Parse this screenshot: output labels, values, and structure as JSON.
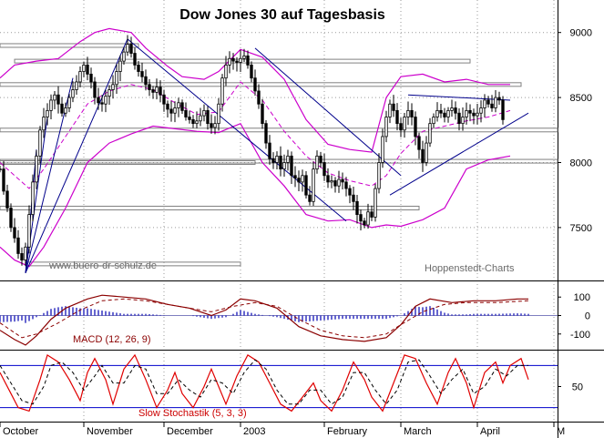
{
  "chart_data": {
    "type": "candlestick",
    "title": "Dow Jones 30 auf Tagesbasis",
    "watermark_left": "www.buero-dr-schulz.de",
    "watermark_right": "Hoppenstedt-Charts",
    "x_labels": [
      "October",
      "November",
      "December",
      "2003",
      "February",
      "March",
      "April",
      "M"
    ],
    "x_label_day": [
      0,
      23,
      45,
      66,
      89,
      110,
      131,
      152
    ],
    "x_range": [
      0,
      153
    ],
    "colors": {
      "up": "#ffffff",
      "down": "#000000",
      "bands": "#cc00cc",
      "trend": "#00008b",
      "macd_line": "#8b0000",
      "stoch_line": "#e00000",
      "stoch_ref": "#0000cc"
    },
    "price": {
      "ylim": [
        7100,
        9250
      ],
      "y_ticks": [
        7500,
        8000,
        8500,
        9000
      ],
      "closes": [
        7950,
        7780,
        7650,
        7500,
        7420,
        7300,
        7250,
        7350,
        7600,
        7850,
        8050,
        8250,
        8350,
        8400,
        8480,
        8520,
        8450,
        8380,
        8420,
        8500,
        8560,
        8620,
        8700,
        8750,
        8680,
        8620,
        8500,
        8460,
        8450,
        8510,
        8560,
        8600,
        8700,
        8780,
        8850,
        8910,
        8840,
        8750,
        8700,
        8660,
        8600,
        8560,
        8540,
        8580,
        8520,
        8450,
        8410,
        8380,
        8420,
        8460,
        8400,
        8350,
        8330,
        8300,
        8320,
        8360,
        8400,
        8300,
        8270,
        8300,
        8450,
        8650,
        8750,
        8800,
        8780,
        8770,
        8800,
        8820,
        8750,
        8650,
        8550,
        8450,
        8300,
        8150,
        8030,
        8000,
        8050,
        7950,
        8000,
        8050,
        7900,
        7880,
        7850,
        7900,
        7750,
        7700,
        7950,
        8050,
        8000,
        7900,
        7850,
        7860,
        7820,
        7870,
        7850,
        7800,
        7750,
        7700,
        7600,
        7550,
        7520,
        7620,
        7580,
        7800,
        8000,
        8200,
        8350,
        8450,
        8400,
        8300,
        8250,
        8350,
        8400,
        8350,
        8200,
        8100,
        8000,
        8150,
        8300,
        8350,
        8400,
        8380,
        8350,
        8400,
        8420,
        8380,
        8300,
        8350,
        8400,
        8380,
        8360,
        8380,
        8420,
        8480,
        8450,
        8420,
        8500,
        8480,
        8330
      ],
      "first_close_day": 0,
      "candle_half_width_days": 0.32,
      "bollinger_upper": [
        [
          0,
          8650
        ],
        [
          4,
          8750
        ],
        [
          10,
          8780
        ],
        [
          16,
          8800
        ],
        [
          22,
          8930
        ],
        [
          26,
          9000
        ],
        [
          30,
          9030
        ],
        [
          36,
          9000
        ],
        [
          40,
          8880
        ],
        [
          46,
          8740
        ],
        [
          50,
          8660
        ],
        [
          56,
          8640
        ],
        [
          60,
          8700
        ],
        [
          66,
          8870
        ],
        [
          72,
          8810
        ],
        [
          78,
          8640
        ],
        [
          84,
          8330
        ],
        [
          90,
          8140
        ],
        [
          96,
          8100
        ],
        [
          102,
          8080
        ],
        [
          106,
          8500
        ],
        [
          110,
          8660
        ],
        [
          116,
          8680
        ],
        [
          122,
          8620
        ],
        [
          128,
          8640
        ],
        [
          134,
          8600
        ],
        [
          140,
          8600
        ]
      ],
      "bollinger_mid": [
        [
          0,
          8000
        ],
        [
          4,
          7900
        ],
        [
          8,
          7800
        ],
        [
          12,
          7950
        ],
        [
          18,
          8200
        ],
        [
          24,
          8450
        ],
        [
          30,
          8550
        ],
        [
          36,
          8600
        ],
        [
          42,
          8560
        ],
        [
          48,
          8460
        ],
        [
          54,
          8370
        ],
        [
          60,
          8390
        ],
        [
          66,
          8620
        ],
        [
          72,
          8480
        ],
        [
          78,
          8240
        ],
        [
          84,
          8050
        ],
        [
          90,
          7920
        ],
        [
          96,
          7860
        ],
        [
          102,
          7820
        ],
        [
          106,
          7900
        ],
        [
          110,
          8070
        ],
        [
          116,
          8240
        ],
        [
          122,
          8280
        ],
        [
          128,
          8320
        ],
        [
          134,
          8350
        ],
        [
          140,
          8400
        ]
      ],
      "bollinger_lower": [
        [
          0,
          7350
        ],
        [
          4,
          7250
        ],
        [
          8,
          7200
        ],
        [
          12,
          7350
        ],
        [
          18,
          7650
        ],
        [
          24,
          8000
        ],
        [
          30,
          8150
        ],
        [
          36,
          8220
        ],
        [
          42,
          8280
        ],
        [
          48,
          8260
        ],
        [
          54,
          8240
        ],
        [
          60,
          8230
        ],
        [
          66,
          8300
        ],
        [
          72,
          8000
        ],
        [
          78,
          7820
        ],
        [
          84,
          7600
        ],
        [
          90,
          7550
        ],
        [
          96,
          7560
        ],
        [
          102,
          7500
        ],
        [
          106,
          7520
        ],
        [
          110,
          7510
        ],
        [
          116,
          7560
        ],
        [
          122,
          7650
        ],
        [
          128,
          7950
        ],
        [
          134,
          8020
        ],
        [
          140,
          8050
        ]
      ],
      "support_lines": [
        [
          7,
          7220,
          66,
          7220
        ],
        [
          0,
          8250,
          153,
          8250
        ],
        [
          0,
          7650,
          115,
          7650
        ],
        [
          0,
          8600,
          143,
          8600
        ],
        [
          0,
          8010,
          153,
          8010
        ],
        [
          4,
          8780,
          129,
          8780
        ],
        [
          0,
          8900,
          38,
          8900
        ],
        [
          0,
          8000,
          70,
          8000
        ]
      ],
      "trend_lines": [
        [
          7,
          7150,
          35,
          8950
        ],
        [
          7,
          7150,
          20,
          8650
        ],
        [
          7,
          7150,
          13,
          8350
        ],
        [
          7,
          7150,
          10,
          8100
        ],
        [
          35,
          8950,
          95,
          7550
        ],
        [
          70,
          8880,
          110,
          7900
        ],
        [
          107,
          7750,
          145,
          8380
        ],
        [
          112,
          8520,
          140,
          8480
        ]
      ]
    },
    "macd": {
      "label": "MACD (12, 26, 9)",
      "ylim": [
        -180,
        180
      ],
      "y_ticks": [
        100,
        0,
        -100
      ],
      "macd_line": [
        [
          0,
          -80
        ],
        [
          4,
          -130
        ],
        [
          7,
          -160
        ],
        [
          10,
          -110
        ],
        [
          14,
          -20
        ],
        [
          18,
          40
        ],
        [
          24,
          90
        ],
        [
          28,
          110
        ],
        [
          34,
          100
        ],
        [
          40,
          90
        ],
        [
          46,
          60
        ],
        [
          52,
          40
        ],
        [
          58,
          0
        ],
        [
          62,
          30
        ],
        [
          66,
          90
        ],
        [
          70,
          80
        ],
        [
          76,
          40
        ],
        [
          82,
          -60
        ],
        [
          88,
          -110
        ],
        [
          94,
          -130
        ],
        [
          100,
          -140
        ],
        [
          106,
          -120
        ],
        [
          110,
          -50
        ],
        [
          114,
          50
        ],
        [
          118,
          90
        ],
        [
          124,
          70
        ],
        [
          130,
          80
        ],
        [
          136,
          80
        ],
        [
          142,
          90
        ],
        [
          145,
          90
        ]
      ],
      "signal_line": [
        [
          0,
          -40
        ],
        [
          6,
          -120
        ],
        [
          10,
          -100
        ],
        [
          16,
          -40
        ],
        [
          22,
          30
        ],
        [
          28,
          80
        ],
        [
          34,
          90
        ],
        [
          40,
          80
        ],
        [
          46,
          60
        ],
        [
          52,
          40
        ],
        [
          58,
          20
        ],
        [
          64,
          50
        ],
        [
          70,
          70
        ],
        [
          76,
          50
        ],
        [
          82,
          -20
        ],
        [
          88,
          -80
        ],
        [
          94,
          -110
        ],
        [
          100,
          -120
        ],
        [
          106,
          -100
        ],
        [
          110,
          -50
        ],
        [
          116,
          20
        ],
        [
          122,
          60
        ],
        [
          128,
          70
        ],
        [
          136,
          70
        ],
        [
          145,
          80
        ]
      ]
    },
    "stochastic": {
      "label": "Slow Stochastik (5, 3, 3)",
      "ylim": [
        0,
        100
      ],
      "y_ticks": [
        50
      ],
      "ref_levels": [
        20,
        80
      ],
      "k_line": [
        [
          0,
          70
        ],
        [
          3,
          40
        ],
        [
          5,
          20
        ],
        [
          8,
          15
        ],
        [
          11,
          60
        ],
        [
          13,
          95
        ],
        [
          16,
          85
        ],
        [
          19,
          60
        ],
        [
          22,
          30
        ],
        [
          24,
          70
        ],
        [
          26,
          90
        ],
        [
          29,
          60
        ],
        [
          31,
          25
        ],
        [
          34,
          75
        ],
        [
          37,
          95
        ],
        [
          40,
          60
        ],
        [
          43,
          20
        ],
        [
          46,
          45
        ],
        [
          48,
          70
        ],
        [
          50,
          40
        ],
        [
          53,
          20
        ],
        [
          56,
          50
        ],
        [
          58,
          75
        ],
        [
          60,
          50
        ],
        [
          62,
          25
        ],
        [
          65,
          65
        ],
        [
          68,
          95
        ],
        [
          71,
          85
        ],
        [
          74,
          55
        ],
        [
          77,
          25
        ],
        [
          80,
          15
        ],
        [
          83,
          35
        ],
        [
          86,
          55
        ],
        [
          88,
          30
        ],
        [
          91,
          15
        ],
        [
          94,
          45
        ],
        [
          97,
          85
        ],
        [
          100,
          60
        ],
        [
          102,
          35
        ],
        [
          105,
          15
        ],
        [
          108,
          55
        ],
        [
          111,
          95
        ],
        [
          114,
          90
        ],
        [
          117,
          55
        ],
        [
          120,
          25
        ],
        [
          123,
          70
        ],
        [
          125,
          90
        ],
        [
          128,
          55
        ],
        [
          130,
          20
        ],
        [
          133,
          70
        ],
        [
          136,
          85
        ],
        [
          138,
          55
        ],
        [
          140,
          80
        ],
        [
          143,
          90
        ],
        [
          145,
          60
        ]
      ],
      "d_line": [
        [
          0,
          80
        ],
        [
          3,
          55
        ],
        [
          6,
          30
        ],
        [
          9,
          25
        ],
        [
          12,
          50
        ],
        [
          14,
          80
        ],
        [
          17,
          85
        ],
        [
          20,
          70
        ],
        [
          23,
          45
        ],
        [
          26,
          65
        ],
        [
          28,
          80
        ],
        [
          31,
          55
        ],
        [
          34,
          55
        ],
        [
          37,
          80
        ],
        [
          40,
          75
        ],
        [
          43,
          40
        ],
        [
          46,
          40
        ],
        [
          49,
          60
        ],
        [
          52,
          45
        ],
        [
          55,
          35
        ],
        [
          58,
          60
        ],
        [
          61,
          55
        ],
        [
          64,
          40
        ],
        [
          67,
          70
        ],
        [
          70,
          88
        ],
        [
          73,
          75
        ],
        [
          76,
          45
        ],
        [
          79,
          25
        ],
        [
          82,
          25
        ],
        [
          85,
          45
        ],
        [
          88,
          45
        ],
        [
          91,
          25
        ],
        [
          94,
          35
        ],
        [
          97,
          70
        ],
        [
          100,
          70
        ],
        [
          103,
          45
        ],
        [
          106,
          25
        ],
        [
          109,
          45
        ],
        [
          112,
          85
        ],
        [
          115,
          88
        ],
        [
          118,
          65
        ],
        [
          121,
          40
        ],
        [
          124,
          60
        ],
        [
          127,
          75
        ],
        [
          130,
          40
        ],
        [
          133,
          50
        ],
        [
          136,
          75
        ],
        [
          139,
          65
        ],
        [
          142,
          80
        ],
        [
          145,
          80
        ]
      ]
    }
  }
}
